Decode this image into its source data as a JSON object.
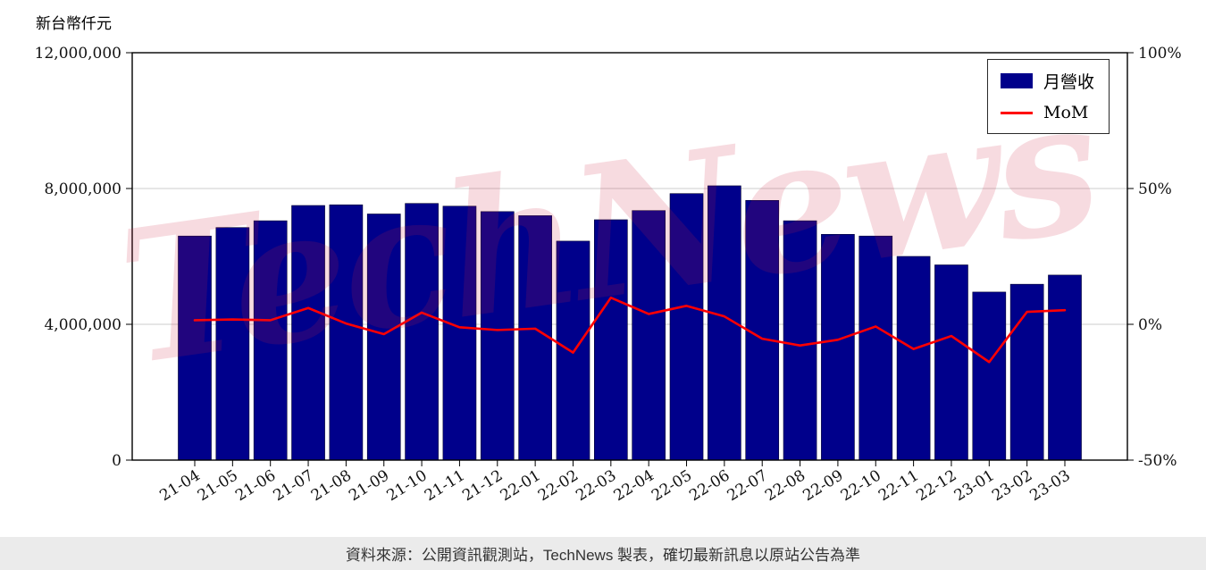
{
  "page": {
    "y_axis_label": "新台幣仟元",
    "watermark": "TechNews",
    "footer": "資料來源：公開資訊觀測站，TechNews 製表，確切最新訊息以原站公告為準"
  },
  "chart_data": {
    "type": "bar",
    "title": "",
    "xlabel": "",
    "ylabel": "新台幣仟元",
    "grid": true,
    "legend_position": "top-right",
    "categories": [
      "21-04",
      "21-05",
      "21-06",
      "21-07",
      "21-08",
      "21-09",
      "21-10",
      "21-11",
      "21-12",
      "22-01",
      "22-02",
      "22-03",
      "22-04",
      "22-05",
      "22-06",
      "22-07",
      "22-08",
      "22-09",
      "22-10",
      "22-11",
      "22-12",
      "23-01",
      "23-02",
      "23-03"
    ],
    "series": [
      {
        "name": "月營收",
        "type": "bar",
        "axis": "left",
        "color": "#00008B",
        "values": [
          6600000,
          6850000,
          7050000,
          7500000,
          7520000,
          7250000,
          7560000,
          7480000,
          7320000,
          7200000,
          6450000,
          7080000,
          7350000,
          7850000,
          8080000,
          7650000,
          7050000,
          6650000,
          6600000,
          6000000,
          5750000,
          4950000,
          5180000,
          5450000
        ]
      },
      {
        "name": "MoM",
        "type": "line",
        "axis": "right",
        "color": "#ff0000",
        "values": [
          1.5,
          1.8,
          1.5,
          6.0,
          0.3,
          -3.6,
          4.3,
          -1.1,
          -2.1,
          -1.6,
          -10.4,
          9.8,
          3.8,
          6.8,
          2.9,
          -5.3,
          -7.8,
          -5.7,
          -0.8,
          -9.1,
          -4.3,
          -13.9,
          4.6,
          5.2
        ]
      }
    ],
    "left_axis": {
      "range": [
        0,
        12000000
      ],
      "ticks": [
        0,
        4000000,
        8000000,
        12000000
      ],
      "tick_labels": [
        "0",
        "4,000,000",
        "8,000,000",
        "12,000,000"
      ]
    },
    "right_axis": {
      "range": [
        -50,
        100
      ],
      "ticks": [
        -50,
        0,
        50,
        100
      ],
      "tick_labels": [
        "-50%",
        "0%",
        "50%",
        "100%"
      ]
    }
  }
}
